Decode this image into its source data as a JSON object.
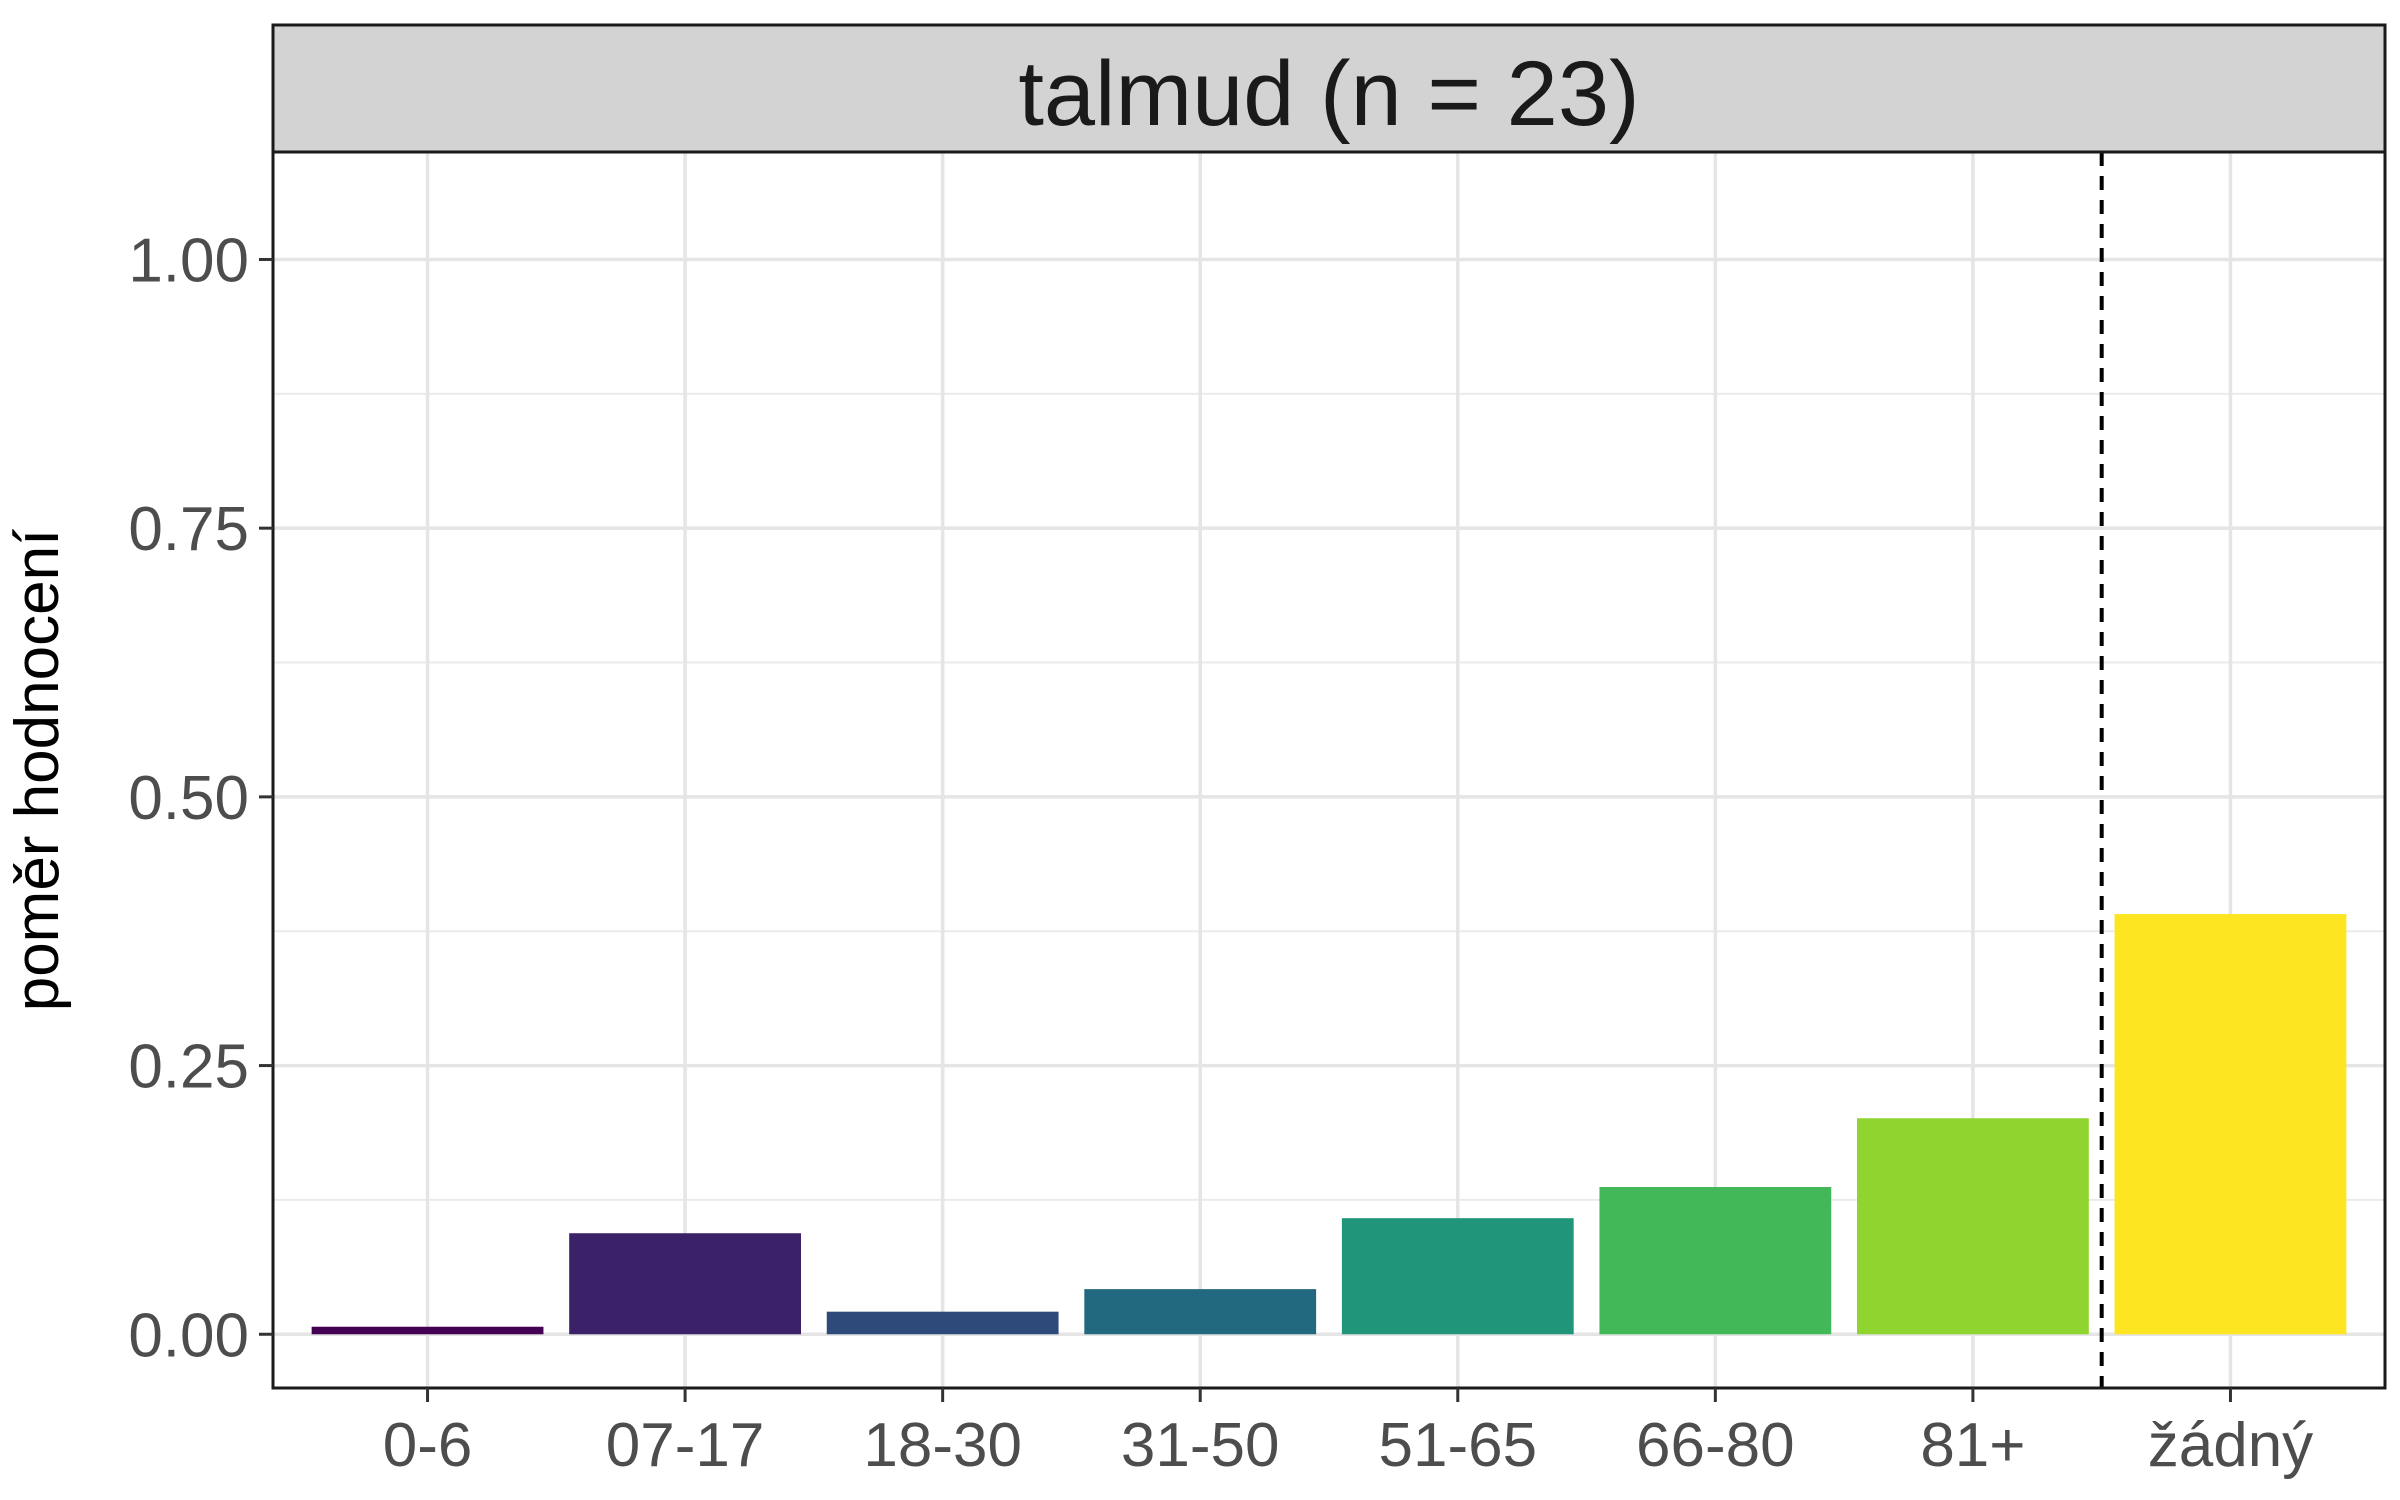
{
  "chart_data": {
    "type": "bar",
    "title": "talmud (n = 23)",
    "xlabel": "",
    "ylabel": "poměr hodnocení",
    "categories": [
      "0-6",
      "07-17",
      "18-30",
      "31-50",
      "51-65",
      "66-80",
      "81+",
      "žádný"
    ],
    "values": [
      0.007,
      0.094,
      0.021,
      0.042,
      0.108,
      0.137,
      0.201,
      0.391
    ],
    "colors": [
      "#440154",
      "#3a2168",
      "#2e4a7a",
      "#22697f",
      "#21957a",
      "#43b859",
      "#90d42f",
      "#fde621"
    ],
    "yticks": [
      "0.00",
      "0.25",
      "0.50",
      "0.75",
      "1.00"
    ],
    "ylim": [
      -0.05,
      1.1
    ],
    "grid": true,
    "reference_line": {
      "style": "dashed",
      "between": [
        "81+",
        "žádný"
      ]
    }
  }
}
